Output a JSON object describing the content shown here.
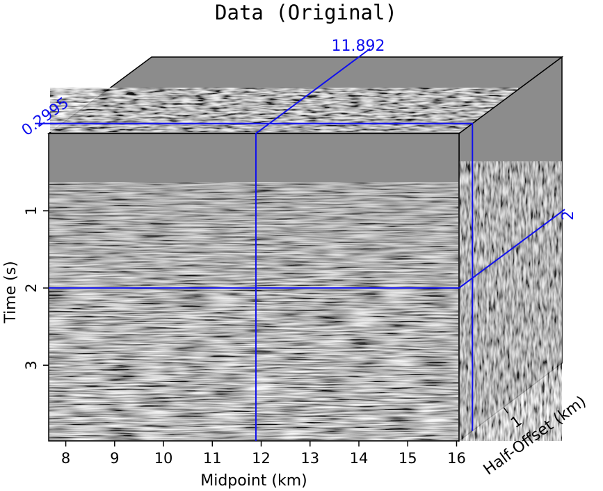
{
  "chart_data": {
    "type": "seismic-cube",
    "title": "Data (Original)",
    "xlabel": "Midpoint (km)",
    "ylabel": "Time (s)",
    "zlabel": "Half-Offset (km)",
    "xlim": [
      7.65,
      16.05
    ],
    "ylim": [
      0,
      3.98
    ],
    "zlim": [
      0,
      2.3
    ],
    "xticks": [
      8,
      9,
      10,
      11,
      12,
      13,
      14,
      15,
      16
    ],
    "yticks": [
      1,
      2,
      3
    ],
    "zticks": [
      1
    ],
    "slices": {
      "midpoint": 11.892,
      "time": 2,
      "half_offset": 0.2995,
      "midpoint_label": "11.892",
      "time_label": "2",
      "offset_label": "0.2995"
    },
    "colors": {
      "slice_lines": "#1010ee",
      "background_gray": "#8c8c8c"
    },
    "colormap": "grayscale"
  }
}
